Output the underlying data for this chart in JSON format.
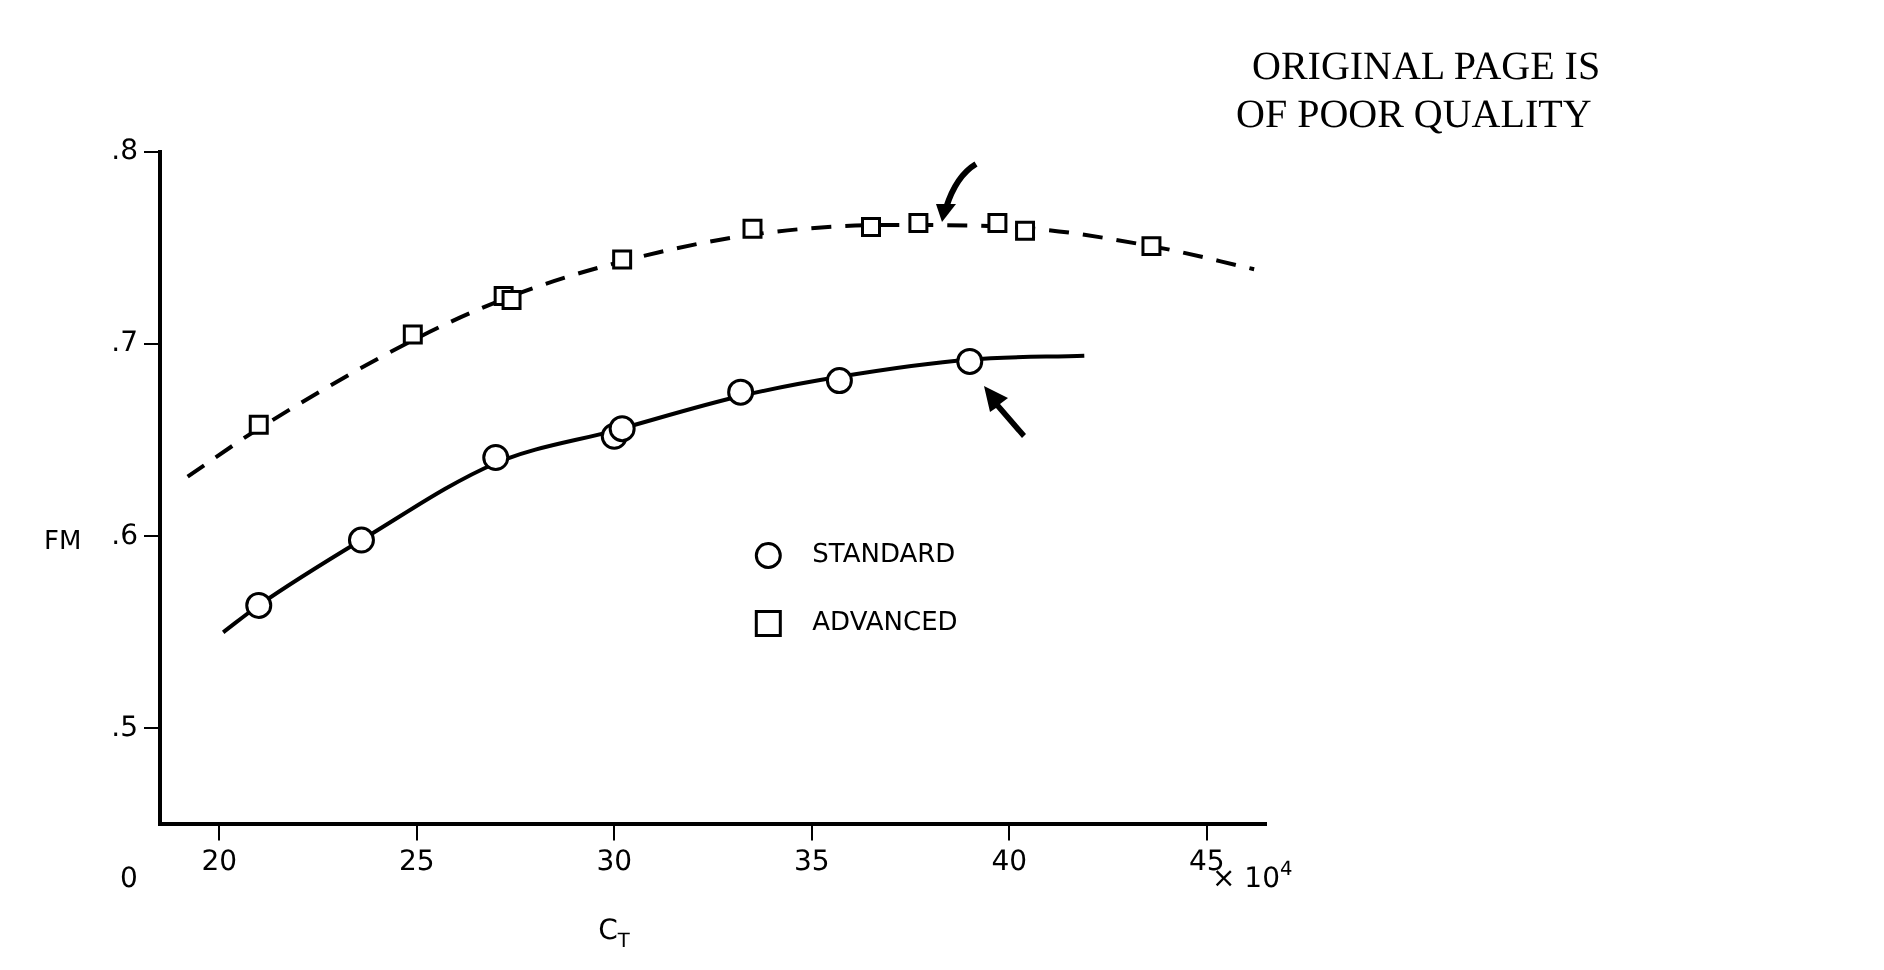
{
  "chart_data": {
    "type": "scatter",
    "xlabel": "C$_{T}$",
    "ylabel": "FM",
    "xlim": [
      18.5,
      46.5
    ],
    "xticks": [
      20,
      25,
      30,
      35,
      40,
      45
    ],
    "ylim": [
      0.45,
      0.8
    ],
    "yticks": [
      {
        "value": 0.5,
        "label": ".5"
      },
      {
        "value": 0.6,
        "label": ".6"
      },
      {
        "value": 0.7,
        "label": ".7"
      },
      {
        "value": 0.8,
        "label": ".8"
      }
    ],
    "grid": false,
    "legend": "right",
    "annotations": [
      "ORIGINAL PAGE IS",
      "OF POOR QUALITY",
      "0",
      "× 10$^{4}$"
    ],
    "series": [
      {
        "name": "STANDARD",
        "type": "scatter",
        "marker": "circle",
        "color": "#000000",
        "x": [
          21.0,
          23.6,
          27.0,
          30.0,
          30.2,
          33.2,
          35.7,
          39.0
        ],
        "values": [
          0.564,
          0.598,
          0.641,
          0.652,
          0.656,
          0.675,
          0.681,
          0.691
        ]
      },
      {
        "name": "ADVANCED",
        "type": "scatter",
        "marker": "square",
        "color": "#000000",
        "x": [
          21.0,
          24.9,
          27.2,
          27.4,
          30.2,
          33.5,
          36.5,
          37.7,
          39.7,
          40.4,
          43.6
        ],
        "values": [
          0.658,
          0.705,
          0.725,
          0.723,
          0.744,
          0.76,
          0.761,
          0.763,
          0.763,
          0.759,
          0.751
        ]
      },
      {
        "type": "line",
        "marker": "none",
        "line_style": "solid",
        "color": "#000000",
        "x": [
          20.1,
          21.0,
          23.6,
          27.0,
          30.0,
          33.2,
          35.7,
          39.0,
          41.9
        ],
        "values": [
          0.55,
          0.564,
          0.598,
          0.638,
          0.655,
          0.673,
          0.683,
          0.692,
          0.694
        ]
      },
      {
        "type": "line",
        "marker": "none",
        "line_style": "dashed",
        "color": "#000000",
        "x": [
          19.2,
          21.0,
          25.0,
          27.4,
          30.0,
          33.5,
          37.0,
          40.0,
          43.6,
          46.2
        ],
        "values": [
          0.631,
          0.656,
          0.703,
          0.725,
          0.742,
          0.757,
          0.762,
          0.761,
          0.751,
          0.739
        ]
      }
    ]
  }
}
